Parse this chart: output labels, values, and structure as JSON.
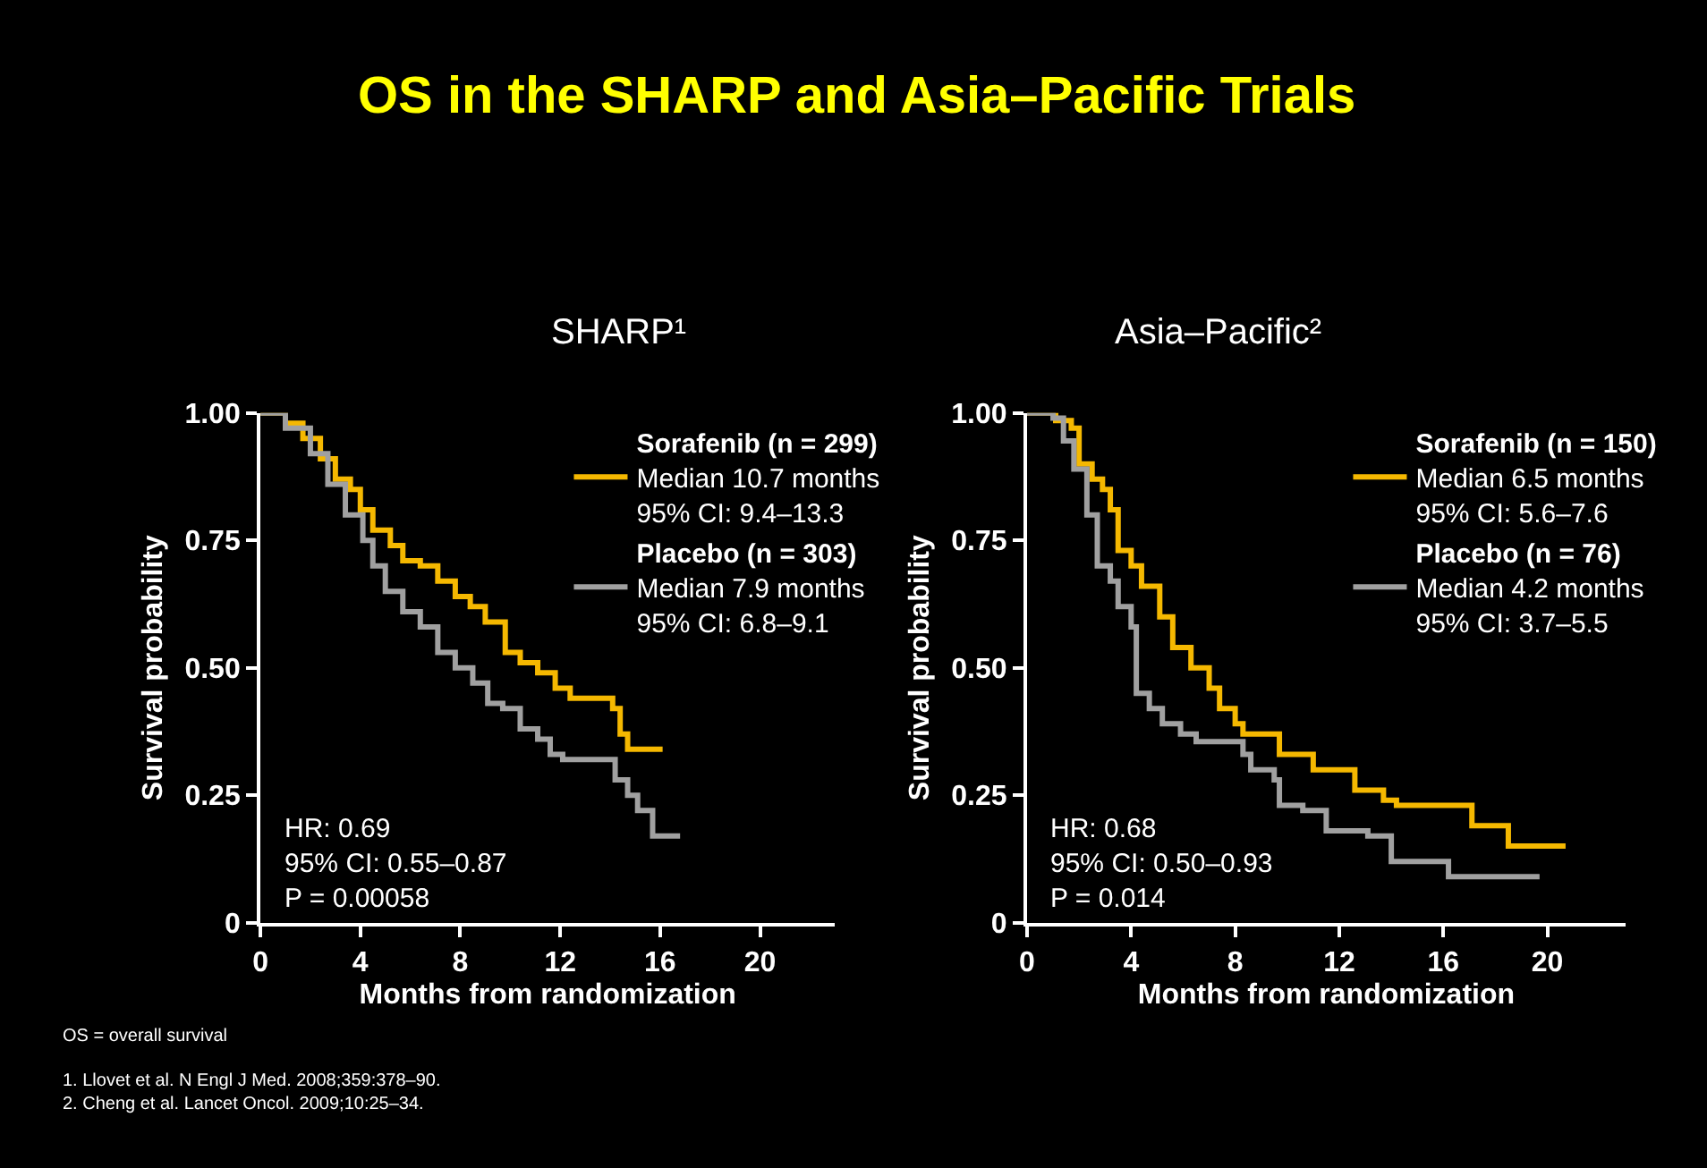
{
  "chart_data": [
    {
      "type": "step",
      "title": "OS in the SHARP and Asia–Pacific Trials",
      "subtitle": "SHARP¹",
      "xlabel": "Months from randomization",
      "ylabel": "Survival probability",
      "xlim": [
        0,
        23
      ],
      "xticks": [
        0,
        4,
        8,
        12,
        16,
        20
      ],
      "ylim": [
        0,
        1.0
      ],
      "yticks": [
        {
          "value": 0,
          "label": "0"
        },
        {
          "value": 0.25,
          "label": "0.25"
        },
        {
          "value": 0.5,
          "label": "0.50"
        },
        {
          "value": 0.75,
          "label": "0.75"
        },
        {
          "value": 1.0,
          "label": "1.00"
        }
      ],
      "grid": false,
      "legend": "top right",
      "marker": "none",
      "line_style": "solid",
      "annotations": [
        "HR: 0.69\n95% CI: 0.55–0.87\nP = 0.00058",
        "OS = overall survival",
        "1. Llovet et al. N Engl J Med. 2008;359:378–90.\n2. Cheng et al. Lancet Oncol. 2009;10:25–34."
      ],
      "series": [
        {
          "name": "Sorafenib (n = 299)\nMedian 10.7 months\n95% CI: 9.4–13.3",
          "color": "#f5b800",
          "x": [
            0,
            1.0,
            1.7,
            2.4,
            3.0,
            3.6,
            4.0,
            4.5,
            5.2,
            5.7,
            6.4,
            7.1,
            7.8,
            8.4,
            9.0,
            9.8,
            10.4,
            11.1,
            11.8,
            12.4,
            13.2,
            14.1,
            14.4,
            14.7,
            16.1
          ],
          "values": [
            1.0,
            0.98,
            0.95,
            0.91,
            0.87,
            0.85,
            0.81,
            0.77,
            0.74,
            0.71,
            0.7,
            0.67,
            0.64,
            0.62,
            0.59,
            0.53,
            0.51,
            0.49,
            0.46,
            0.44,
            0.44,
            0.42,
            0.37,
            0.34,
            0.34
          ]
        },
        {
          "name": "Placebo (n = 303)\nMedian 7.9 months\n95% CI: 6.8–9.1",
          "color": "#a0a0a0",
          "x": [
            0,
            1.0,
            2.0,
            2.7,
            3.4,
            4.1,
            4.5,
            5.0,
            5.7,
            6.4,
            7.1,
            7.8,
            8.5,
            9.1,
            9.7,
            10.4,
            11.1,
            11.6,
            12.1,
            13.7,
            14.2,
            14.7,
            15.1,
            15.6,
            15.7,
            16.8
          ],
          "values": [
            1.0,
            0.97,
            0.92,
            0.86,
            0.8,
            0.75,
            0.7,
            0.65,
            0.61,
            0.58,
            0.53,
            0.5,
            0.47,
            0.43,
            0.42,
            0.38,
            0.36,
            0.33,
            0.32,
            0.32,
            0.28,
            0.25,
            0.22,
            0.22,
            0.17,
            0.17
          ]
        }
      ]
    },
    {
      "type": "step",
      "title": "Asia–Pacific²",
      "xlabel": "Months from randomization",
      "ylabel": "Survival probability",
      "xlim": [
        0,
        23
      ],
      "xticks": [
        0,
        4,
        8,
        12,
        16,
        20
      ],
      "ylim": [
        0,
        1.0
      ],
      "yticks": [
        {
          "value": 0,
          "label": "0"
        },
        {
          "value": 0.25,
          "label": "0.25"
        },
        {
          "value": 0.5,
          "label": "0.50"
        },
        {
          "value": 0.75,
          "label": "0.75"
        },
        {
          "value": 1.0,
          "label": "1.00"
        }
      ],
      "grid": false,
      "legend": "top right",
      "marker": "none",
      "line_style": "solid",
      "annotations": [
        "HR: 0.68\n95% CI: 0.50–0.93\nP = 0.014"
      ],
      "series": [
        {
          "name": "Sorafenib (n = 150)\nMedian 6.5 months\n95% CI: 5.6–7.6",
          "color": "#f5b800",
          "x": [
            0,
            1.1,
            1.7,
            2.0,
            2.5,
            2.9,
            3.2,
            3.5,
            4.0,
            4.4,
            5.1,
            5.6,
            6.3,
            7.0,
            7.4,
            8.0,
            8.3,
            9.2,
            9.7,
            10.6,
            11.0,
            12.4,
            12.6,
            13.7,
            14.2,
            16.9,
            17.1,
            18.5,
            18.5,
            20.7
          ],
          "values": [
            1.0,
            0.985,
            0.97,
            0.9,
            0.87,
            0.85,
            0.81,
            0.73,
            0.7,
            0.66,
            0.6,
            0.54,
            0.5,
            0.46,
            0.42,
            0.39,
            0.37,
            0.37,
            0.33,
            0.33,
            0.3,
            0.3,
            0.26,
            0.24,
            0.23,
            0.23,
            0.19,
            0.19,
            0.15,
            0.15
          ]
        },
        {
          "name": "Placebo (n = 76)\nMedian 4.2 months\n95% CI: 3.7–5.5",
          "color": "#a0a0a0",
          "x": [
            0,
            1.0,
            1.4,
            1.8,
            2.3,
            2.7,
            3.2,
            3.5,
            4.0,
            4.2,
            4.7,
            5.2,
            5.9,
            6.5,
            8.0,
            8.3,
            8.6,
            9.5,
            9.7,
            10.6,
            11.3,
            11.5,
            13.1,
            14.0,
            16.2,
            16.2,
            19.7
          ],
          "values": [
            1.0,
            0.99,
            0.945,
            0.89,
            0.8,
            0.7,
            0.67,
            0.62,
            0.58,
            0.45,
            0.42,
            0.39,
            0.37,
            0.355,
            0.355,
            0.33,
            0.3,
            0.28,
            0.23,
            0.22,
            0.22,
            0.18,
            0.17,
            0.12,
            0.12,
            0.09,
            0.09
          ]
        }
      ]
    }
  ]
}
